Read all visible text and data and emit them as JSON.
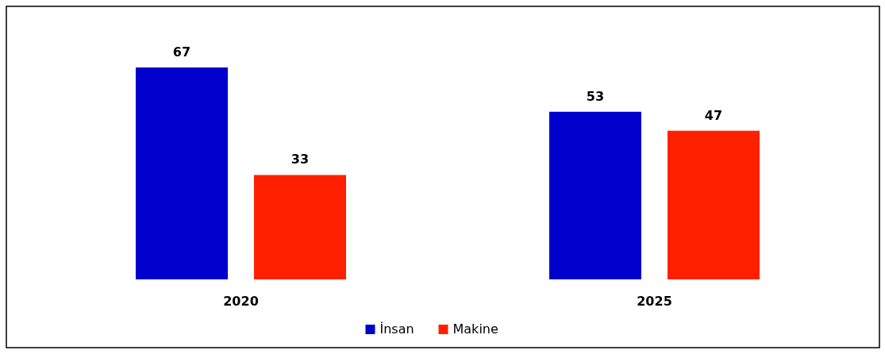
{
  "chart_data": {
    "type": "bar",
    "categories": [
      "2020",
      "2025"
    ],
    "series": [
      {
        "name": "İnsan",
        "color": "#0000cc",
        "values": [
          67,
          53
        ]
      },
      {
        "name": "Makine",
        "color": "#ff2000",
        "values": [
          33,
          47
        ]
      }
    ],
    "data_labels": true,
    "legend": "bottom"
  }
}
